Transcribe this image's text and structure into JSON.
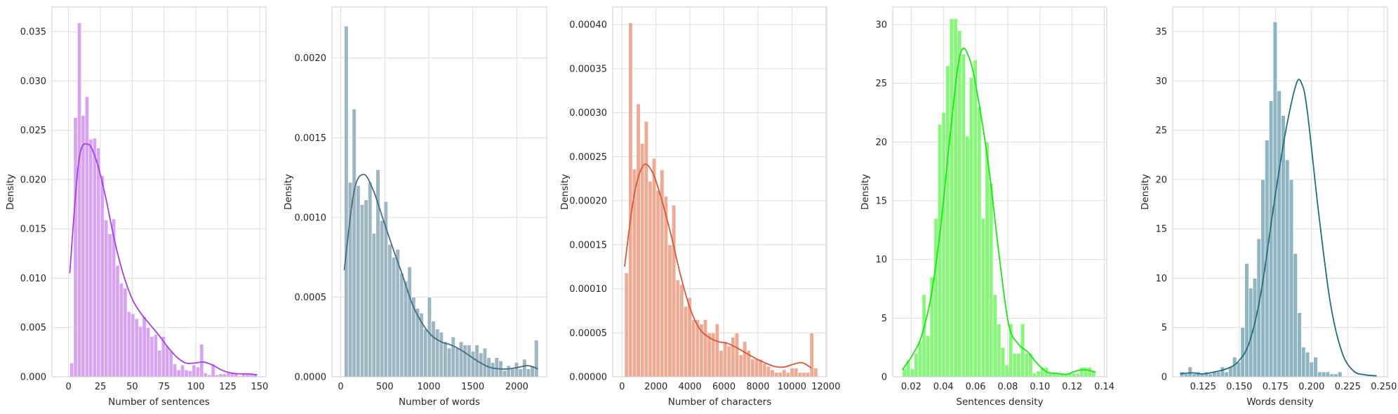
{
  "chart_data": [
    {
      "type": "histogram",
      "xlabel": "Number of sentences",
      "ylabel": "Density",
      "xlim": [
        -13,
        155
      ],
      "ylim": [
        0,
        0.0375
      ],
      "xticks": [
        0,
        25,
        50,
        75,
        100,
        125,
        150
      ],
      "xtick_labels": [
        "0",
        "25",
        "50",
        "75",
        "100",
        "125",
        "150"
      ],
      "yticks": [
        0,
        0.005,
        0.01,
        0.015,
        0.02,
        0.025,
        0.03,
        0.035
      ],
      "ytick_labels": [
        "0.000",
        "0.005",
        "0.010",
        "0.015",
        "0.020",
        "0.025",
        "0.030",
        "0.035"
      ],
      "bar_color": "#d7a3f2",
      "kde_color": "#a53ee4",
      "bin_start": 1,
      "bin_width": 3.0,
      "values": [
        0.0014,
        0.0263,
        0.0359,
        0.0265,
        0.0284,
        0.0241,
        0.0242,
        0.0232,
        0.0204,
        0.0159,
        0.0145,
        0.016,
        0.0113,
        0.0095,
        0.009,
        0.0066,
        0.0064,
        0.0059,
        0.0051,
        0.0061,
        0.005,
        0.0041,
        0.0043,
        0.0027,
        0.0041,
        0.0031,
        0.0026,
        0.0013,
        0.0007,
        0.0012,
        0.0007,
        0.0006,
        0.0012,
        0.001,
        0.0033,
        0.0004,
        0.0002,
        0.0013,
        0.0002,
        0.0003,
        0.0003,
        0.0004,
        0.0004,
        0.0004,
        0.0001,
        0.0003,
        0.0003,
        0.0003,
        0.0003
      ],
      "kde_x": [
        1,
        8,
        15,
        22,
        29,
        36,
        43,
        50,
        57,
        64,
        71,
        78,
        85,
        92,
        99,
        106,
        113,
        120,
        127,
        134,
        141,
        148
      ],
      "kde_y": [
        0.0105,
        0.0218,
        0.0236,
        0.0219,
        0.0183,
        0.0139,
        0.0104,
        0.0079,
        0.0064,
        0.0053,
        0.0042,
        0.003,
        0.002,
        0.0014,
        0.0014,
        0.0015,
        0.0012,
        0.0007,
        0.0004,
        0.0003,
        0.0003,
        0.0002
      ]
    },
    {
      "type": "histogram",
      "xlabel": "Number of words",
      "ylabel": "Density",
      "xlim": [
        -100,
        2340
      ],
      "ylim": [
        0,
        0.00232
      ],
      "xticks": [
        0,
        500,
        1000,
        1500,
        2000
      ],
      "xtick_labels": [
        "0",
        "500",
        "1000",
        "1500",
        "2000"
      ],
      "yticks": [
        0,
        0.0005,
        0.001,
        0.0015,
        0.002
      ],
      "ytick_labels": [
        "0.0000",
        "0.0005",
        "0.0010",
        "0.0015",
        "0.0020"
      ],
      "bar_color": "#9eb6c1",
      "kde_color": "#3f6e86",
      "bin_start": 40,
      "bin_width": 45,
      "values": [
        0.0022,
        0.00122,
        0.00168,
        0.0012,
        0.00108,
        0.00111,
        0.00122,
        0.0009,
        0.0013,
        0.00098,
        0.0011,
        0.00083,
        0.00075,
        0.0008,
        0.00065,
        0.0006,
        0.00069,
        0.0005,
        0.00043,
        0.0004,
        0.0003,
        0.0005,
        0.00035,
        0.0003,
        0.00028,
        0.00022,
        0.00018,
        0.00025,
        0.00018,
        0.00022,
        0.0002,
        0.0002,
        0.00016,
        0.0002,
        0.00015,
        0.00018,
        0.00012,
        9e-05,
        0.00012,
        0.0001,
        4e-05,
        7e-05,
        5e-05,
        9e-05,
        5e-05,
        0.00011,
        5e-05,
        7e-05,
        0.00023
      ],
      "kde_x": [
        40,
        150,
        260,
        370,
        480,
        590,
        700,
        810,
        920,
        1030,
        1140,
        1250,
        1360,
        1470,
        1580,
        1690,
        1800,
        1910,
        2020,
        2130,
        2240
      ],
      "kde_y": [
        0.00067,
        0.00116,
        0.00127,
        0.00117,
        0.00099,
        0.00081,
        0.00064,
        0.00046,
        0.00034,
        0.00026,
        0.00022,
        0.0002,
        0.00017,
        0.00013,
        9e-05,
        6e-05,
        5e-05,
        5e-05,
        6e-05,
        7e-05,
        5e-05
      ]
    },
    {
      "type": "histogram",
      "xlabel": "Number of characters",
      "ylabel": "Density",
      "xlim": [
        -550,
        12050
      ],
      "ylim": [
        0,
        0.00042
      ],
      "xticks": [
        0,
        2000,
        4000,
        6000,
        8000,
        10000,
        12000
      ],
      "xtick_labels": [
        "0",
        "2000",
        "4000",
        "6000",
        "8000",
        "10000",
        "12000"
      ],
      "yticks": [
        0,
        5e-05,
        0.0001,
        0.00015,
        0.0002,
        0.00025,
        0.0003,
        0.00035,
        0.0004
      ],
      "ytick_labels": [
        "0.00000",
        "0.00005",
        "0.00010",
        "0.00015",
        "0.00020",
        "0.00025",
        "0.00030",
        "0.00035",
        "0.00040"
      ],
      "bar_color": "#eeaa93",
      "kde_color": "#d6573b",
      "bin_start": 150,
      "bin_width": 232,
      "values": [
        0.000118,
        0.000402,
        0.000236,
        0.00031,
        0.000265,
        0.00029,
        0.000222,
        0.000248,
        0.000212,
        0.000235,
        0.000205,
        0.00015,
        0.000195,
        0.00011,
        0.000105,
        8e-05,
        9e-05,
        6.5e-05,
        6.5e-05,
        6e-05,
        6.5e-05,
        5e-05,
        5e-05,
        6e-05,
        3e-05,
        4e-05,
        3.5e-05,
        4.5e-05,
        5e-05,
        2.5e-05,
        4e-05,
        3e-05,
        2e-05,
        2e-05,
        2e-05,
        1.5e-05,
        1.2e-05,
        8e-06,
        5e-06,
        5e-06,
        8e-06,
        5e-06,
        1e-05,
        1e-05,
        5e-06,
        5e-06,
        5e-06,
        5e-05,
        1e-05
      ],
      "kde_x": [
        150,
        700,
        1250,
        1800,
        2350,
        2900,
        3450,
        4000,
        4550,
        5100,
        5650,
        6200,
        6750,
        7300,
        7850,
        8400,
        8950,
        9500,
        10050,
        10600,
        11150
      ],
      "kde_y": [
        0.000125,
        0.000205,
        0.00024,
        0.000232,
        0.0002,
        0.00016,
        0.000115,
        7.8e-05,
        5.5e-05,
        4.5e-05,
        4e-05,
        3.8e-05,
        3.3e-05,
        2.7e-05,
        2.1e-05,
        1.6e-05,
        1.2e-05,
        1.1e-05,
        1.4e-05,
        1.6e-05,
        1e-05
      ]
    },
    {
      "type": "histogram",
      "xlabel": "Sentences density",
      "ylabel": "Density",
      "xlim": [
        0.0085,
        0.1415
      ],
      "ylim": [
        0,
        31.5
      ],
      "xticks": [
        0.02,
        0.04,
        0.06,
        0.08,
        0.1,
        0.12,
        0.14
      ],
      "xtick_labels": [
        "0.02",
        "0.04",
        "0.06",
        "0.08",
        "0.10",
        "0.12",
        "0.14"
      ],
      "yticks": [
        0,
        5,
        10,
        15,
        20,
        25,
        30
      ],
      "ytick_labels": [
        "0",
        "5",
        "10",
        "15",
        "20",
        "25",
        "30"
      ],
      "bar_color": "#86f877",
      "kde_color": "#18e812",
      "bin_start": 0.0145,
      "bin_width": 0.00245,
      "values": [
        0.7,
        1.4,
        0.7,
        2.0,
        3.0,
        7.0,
        3.5,
        8.5,
        13.5,
        21.5,
        22.5,
        26.5,
        30.5,
        30.5,
        29.5,
        27.5,
        20.5,
        25.5,
        27.0,
        23.0,
        13.5,
        20.0,
        16.5,
        7.0,
        4.5,
        2.5,
        1.0,
        4.5,
        2.0,
        2.0,
        4.5,
        2.0,
        2.0,
        0.3,
        0.5,
        0.8,
        0.8,
        0.3,
        0.3,
        0.3,
        0.3,
        0.3,
        0.3,
        0.3,
        0.3,
        0.8,
        0.8,
        0.8,
        0.5
      ],
      "kde_x": [
        0.0145,
        0.0205,
        0.0265,
        0.0325,
        0.0385,
        0.0445,
        0.0505,
        0.0565,
        0.0625,
        0.0685,
        0.0745,
        0.0805,
        0.0865,
        0.0925,
        0.0985,
        0.1045,
        0.1105,
        0.1165,
        0.1225,
        0.1285,
        0.1345
      ],
      "kde_y": [
        0.6,
        1.8,
        3.5,
        7.0,
        13.0,
        21.0,
        27.5,
        27.0,
        23.0,
        17.5,
        10.5,
        4.5,
        2.8,
        2.1,
        1.1,
        0.4,
        0.3,
        0.2,
        0.5,
        0.6,
        0.4
      ]
    },
    {
      "type": "histogram",
      "xlabel": "Words density",
      "ylabel": "Density",
      "xlim": [
        0.104,
        0.2525
      ],
      "ylim": [
        0,
        37.5
      ],
      "xticks": [
        0.125,
        0.15,
        0.175,
        0.2,
        0.225,
        0.25
      ],
      "xtick_labels": [
        "0.125",
        "0.150",
        "0.175",
        "0.200",
        "0.225",
        "0.250"
      ],
      "yticks": [
        0,
        5,
        10,
        15,
        20,
        25,
        30,
        35
      ],
      "ytick_labels": [
        "0",
        "5",
        "10",
        "15",
        "20",
        "25",
        "30",
        "35"
      ],
      "bar_color": "#8eb5c1",
      "kde_color": "#236c7f",
      "bin_start": 0.109,
      "bin_width": 0.0028,
      "values": [
        0.5,
        0.3,
        1.0,
        0.3,
        0.5,
        0.3,
        0.5,
        0.3,
        0.5,
        0.5,
        1.0,
        0.5,
        1.0,
        2.0,
        1.5,
        5.0,
        11.5,
        9.0,
        10.0,
        14.0,
        20.0,
        24.0,
        28.0,
        36.0,
        29.0,
        26.5,
        22.0,
        20.0,
        12.5,
        6.5,
        3.0,
        2.5,
        1.5,
        2.0,
        0.5,
        0.5,
        0.5,
        0.3,
        0.3,
        0.5
      ],
      "kde_x": [
        0.109,
        0.117,
        0.125,
        0.133,
        0.141,
        0.149,
        0.157,
        0.165,
        0.173,
        0.181,
        0.189,
        0.193,
        0.197,
        0.205,
        0.213,
        0.221,
        0.229,
        0.237,
        0.245
      ],
      "kde_y": [
        0.3,
        0.4,
        0.3,
        0.5,
        0.8,
        1.5,
        3.5,
        8.5,
        16.5,
        24.0,
        29.5,
        29.8,
        27.0,
        16.5,
        7.5,
        2.5,
        0.6,
        0.2,
        0.1
      ]
    }
  ]
}
